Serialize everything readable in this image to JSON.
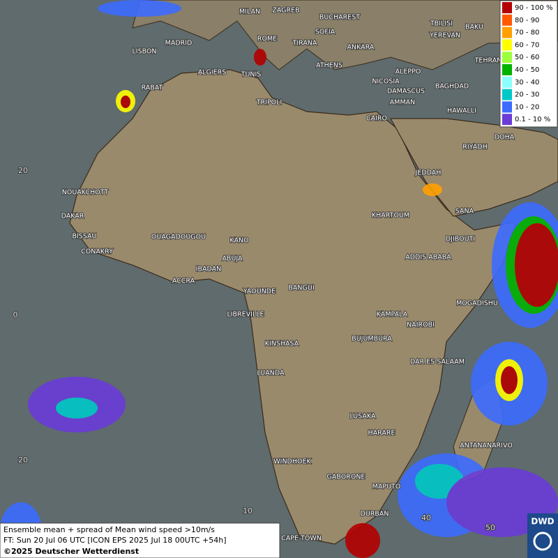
{
  "legend": {
    "items": [
      {
        "label": "90 - 100 %",
        "color": "#b40000"
      },
      {
        "label": "80 - 90",
        "color": "#ff5a00"
      },
      {
        "label": "70 - 80",
        "color": "#ffa000"
      },
      {
        "label": "60 - 70",
        "color": "#ffff00"
      },
      {
        "label": "50 - 60",
        "color": "#9cff3c"
      },
      {
        "label": "40 - 50",
        "color": "#00b400"
      },
      {
        "label": "30 - 40",
        "color": "#8cffff"
      },
      {
        "label": "20 - 30",
        "color": "#00c8c8"
      },
      {
        "label": "10 - 20",
        "color": "#3c6cff"
      },
      {
        "label": "0.1 - 10 %",
        "color": "#6a3cd8"
      }
    ]
  },
  "cities": [
    "MILAN",
    "ZAGREB",
    "BUCHAREST",
    "SOFIA",
    "TBILISI",
    "BAKU",
    "ROME",
    "TIRANA",
    "ANKARA",
    "YEREVAN",
    "LISBON",
    "MADRID",
    "TEHRAN",
    "ALGIERS",
    "TUNIS",
    "ATHENS",
    "ALEPPO",
    "RABAT",
    "NICOSIA",
    "BAGHDAD",
    "DAMASCUS",
    "TRIPOLI",
    "AMMAN",
    "HAWALLI",
    "CAIRO",
    "DOHA",
    "RIYADH",
    "JEDDAH",
    "NOUAKCHOTT",
    "SANA",
    "KHARTOUM",
    "DAKAR",
    "BISSAU",
    "DJIBOUTI",
    "OUAGADOUGOU",
    "KANO",
    "CONAKRY",
    "ADDIS ABABA",
    "ABUJA",
    "IBADAN",
    "ACCRA",
    "YAOUNDE",
    "BANGUI",
    "MOGADISHU",
    "LIBREVILLE",
    "KAMPALA",
    "NAIROBI",
    "KINSHASA",
    "BUJUMBURA",
    "DAR ES SALAAM",
    "LUANDA",
    "LUSAKA",
    "HARARE",
    "ANTANANARIVO",
    "WINDHOEK",
    "GABORONE",
    "MAPUTO",
    "DURBAN",
    "CAPE TOWN"
  ],
  "grid_labels": [
    "20",
    "0",
    "20",
    "10",
    "40",
    "50"
  ],
  "caption": {
    "lines": [
      "Ensemble mean + spread of Mean wind speed >10m/s",
      "FT: Sun 20 Jul 06 UTC [ICON EPS 2025 Jul 18 00UTC +54h]",
      "©2025 Deutscher Wetterdienst"
    ]
  },
  "logo": "DWD"
}
